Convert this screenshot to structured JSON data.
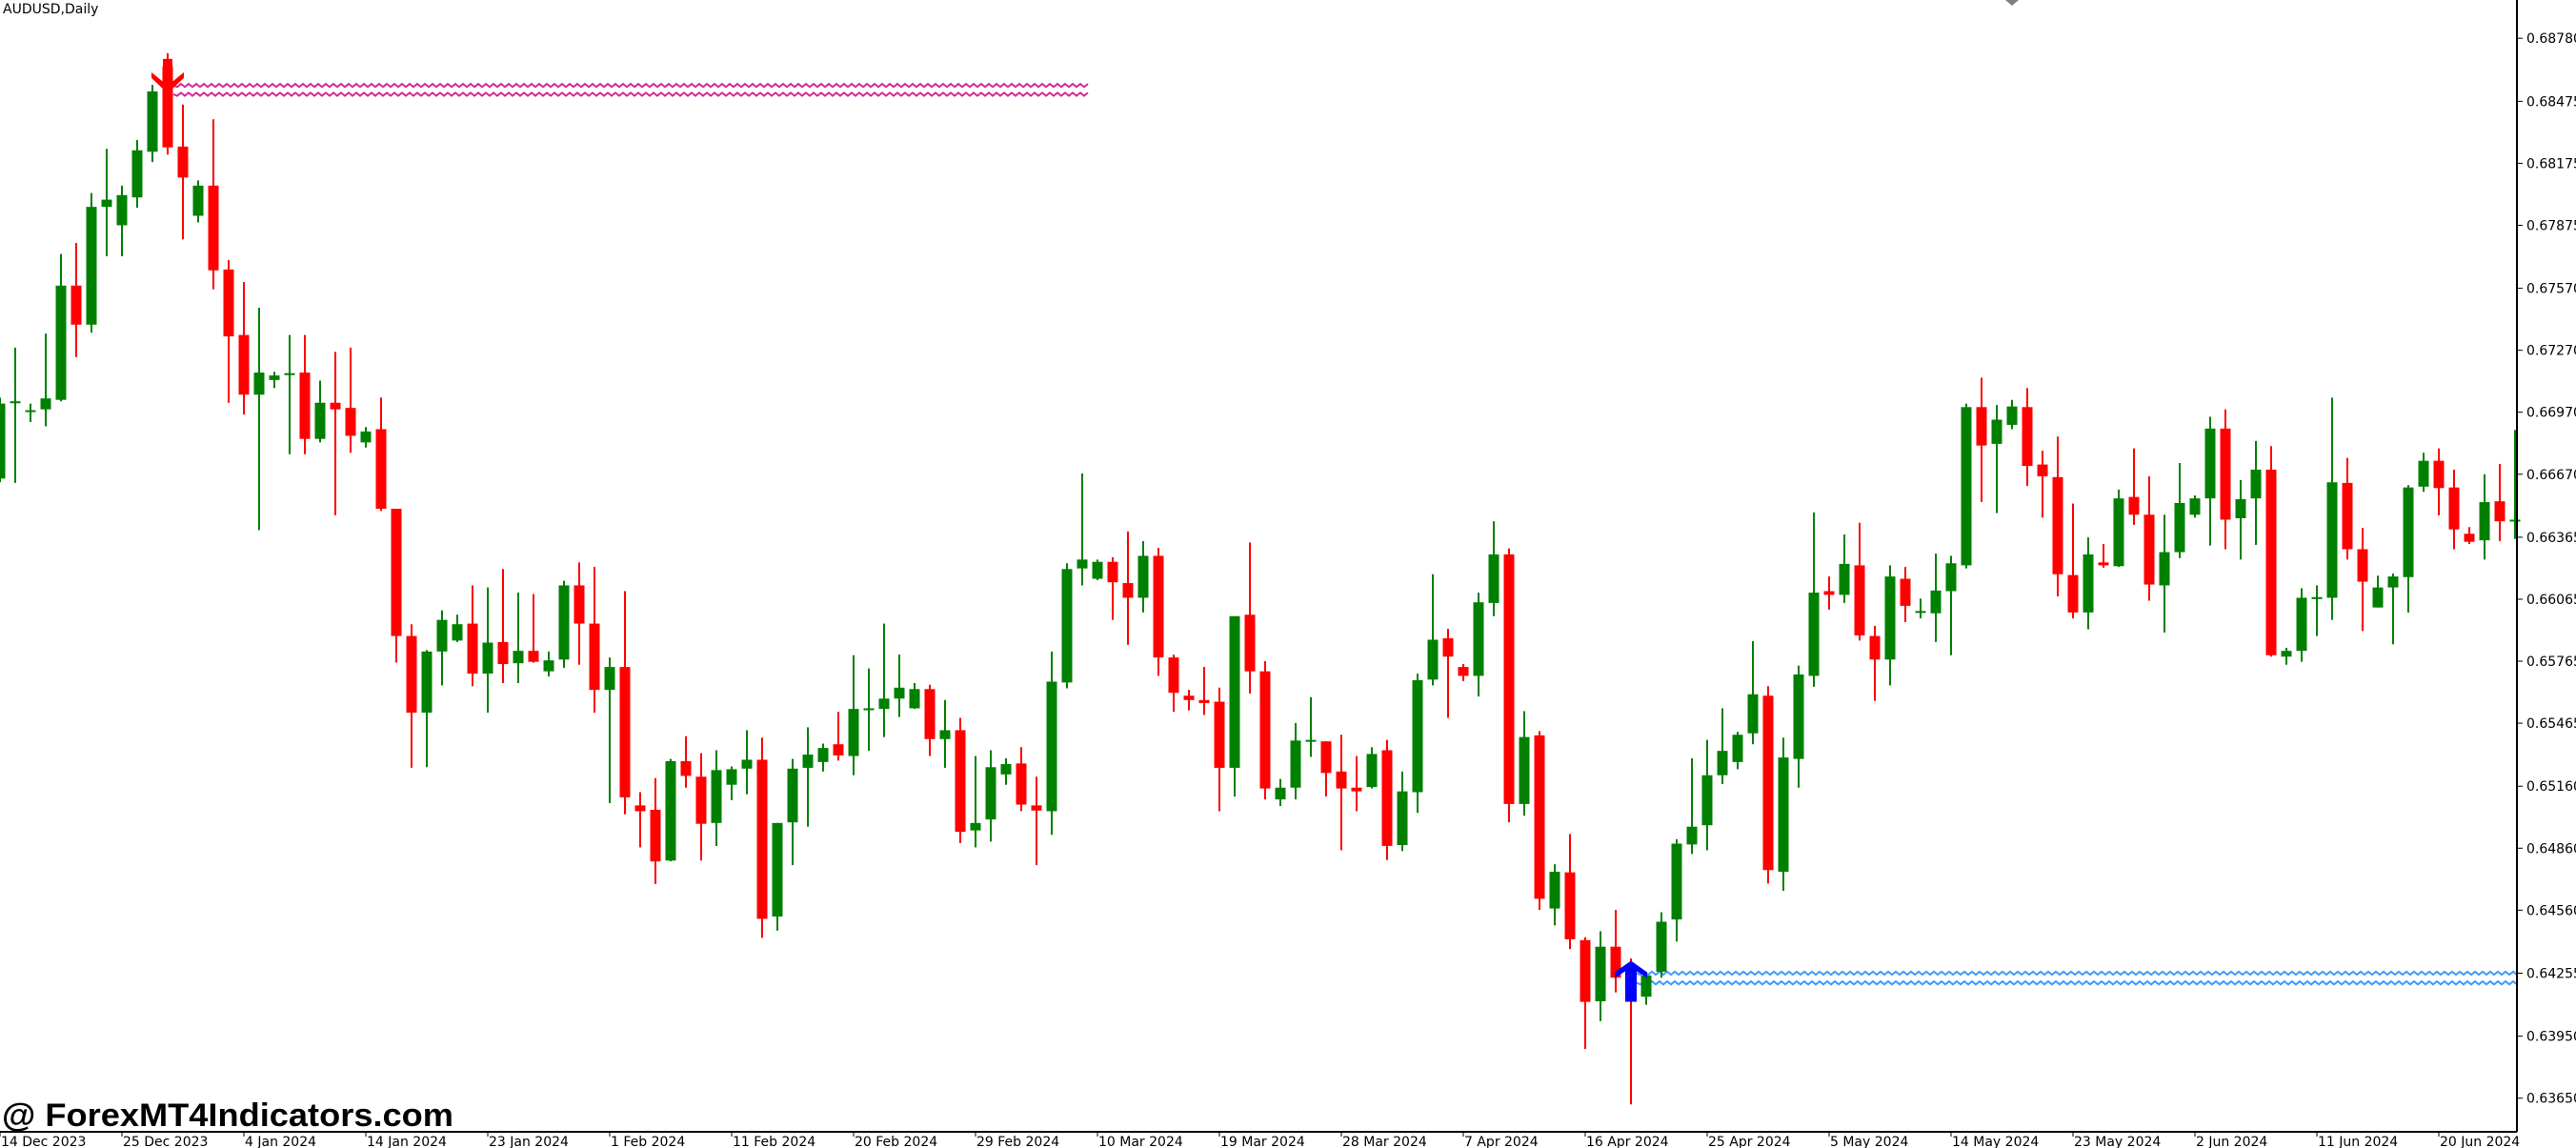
{
  "window": {
    "title": "AUDUSD,Daily"
  },
  "watermark": "@ ForexMT4Indicators.com",
  "colors": {
    "bull": "#008000",
    "bear": "#ff0000",
    "resistance": "#d12c9b",
    "support": "#3d9bff",
    "sell_arrow": "#ff0000",
    "buy_arrow": "#0000ff",
    "marker": "#808080",
    "axis": "#000000",
    "background": "#ffffff"
  },
  "chart_data": {
    "type": "candlestick",
    "title": "AUDUSD,Daily",
    "columns": [
      "open",
      "high",
      "low",
      "close"
    ],
    "x_tick_labels": [
      "14 Dec 2023",
      "25 Dec 2023",
      "4 Jan 2024",
      "14 Jan 2024",
      "23 Jan 2024",
      "1 Feb 2024",
      "11 Feb 2024",
      "20 Feb 2024",
      "29 Feb 2024",
      "10 Mar 2024",
      "19 Mar 2024",
      "28 Mar 2024",
      "7 Apr 2024",
      "16 Apr 2024",
      "25 Apr 2024",
      "5 May 2024",
      "14 May 2024",
      "23 May 2024",
      "2 Jun 2024",
      "11 Jun 2024",
      "20 Jun 2024"
    ],
    "x_tick_every_bars": 8,
    "y_tick_labels": [
      "0.68780",
      "0.68475",
      "0.68175",
      "0.67875",
      "0.67570",
      "0.67270",
      "0.66970",
      "0.66670",
      "0.66365",
      "0.66065",
      "0.65765",
      "0.65465",
      "0.65160",
      "0.64860",
      "0.64560",
      "0.64255",
      "0.63950",
      "0.63650"
    ],
    "ylim": [
      0.6358,
      0.6896
    ],
    "grid": false,
    "candles": [
      [
        0.66649,
        0.67041,
        0.66631,
        0.67012
      ],
      [
        0.67016,
        0.67283,
        0.66628,
        0.67023
      ],
      [
        0.66973,
        0.67012,
        0.66923,
        0.6698
      ],
      [
        0.66984,
        0.67351,
        0.66902,
        0.67037
      ],
      [
        0.6703,
        0.67736,
        0.67023,
        0.67583
      ],
      [
        0.67583,
        0.67789,
        0.67237,
        0.67394
      ],
      [
        0.67394,
        0.68031,
        0.67355,
        0.67964
      ],
      [
        0.67964,
        0.68245,
        0.67725,
        0.67999
      ],
      [
        0.67875,
        0.68067,
        0.67725,
        0.68021
      ],
      [
        0.6801,
        0.68288,
        0.6796,
        0.68238
      ],
      [
        0.68231,
        0.68555,
        0.68181,
        0.68523
      ],
      [
        0.68644,
        0.68708,
        0.68217,
        0.68252
      ],
      [
        0.68256,
        0.68459,
        0.67807,
        0.68106
      ],
      [
        0.67921,
        0.68092,
        0.67889,
        0.68067
      ],
      [
        0.68067,
        0.68388,
        0.67565,
        0.67657
      ],
      [
        0.67661,
        0.67707,
        0.67016,
        0.67337
      ],
      [
        0.67344,
        0.676,
        0.66959,
        0.67055
      ],
      [
        0.67055,
        0.67476,
        0.664,
        0.67162
      ],
      [
        0.67126,
        0.67166,
        0.67087,
        0.67148
      ],
      [
        0.67155,
        0.67344,
        0.66767,
        0.67159
      ],
      [
        0.67162,
        0.67344,
        0.66767,
        0.66841
      ],
      [
        0.66841,
        0.67123,
        0.66824,
        0.67016
      ],
      [
        0.67016,
        0.67262,
        0.66471,
        0.66984
      ],
      [
        0.66991,
        0.67283,
        0.66774,
        0.66856
      ],
      [
        0.66824,
        0.66898,
        0.66799,
        0.66877
      ],
      [
        0.66888,
        0.67041,
        0.66492,
        0.66503
      ],
      [
        0.66503,
        0.66503,
        0.65758,
        0.65887
      ],
      [
        0.65887,
        0.65944,
        0.65249,
        0.65516
      ],
      [
        0.65516,
        0.65819,
        0.65252,
        0.65812
      ],
      [
        0.65812,
        0.66011,
        0.65648,
        0.65965
      ],
      [
        0.65865,
        0.6599,
        0.65858,
        0.65944
      ],
      [
        0.65947,
        0.66132,
        0.65644,
        0.65705
      ],
      [
        0.65705,
        0.66122,
        0.65516,
        0.65855
      ],
      [
        0.65858,
        0.66211,
        0.65659,
        0.65751
      ],
      [
        0.65755,
        0.66097,
        0.65659,
        0.65815
      ],
      [
        0.65815,
        0.6609,
        0.65758,
        0.65762
      ],
      [
        0.65716,
        0.65812,
        0.65691,
        0.65769
      ],
      [
        0.65773,
        0.66154,
        0.65733,
        0.66132
      ],
      [
        0.66132,
        0.66243,
        0.65748,
        0.65947
      ],
      [
        0.65947,
        0.66221,
        0.65516,
        0.65626
      ],
      [
        0.65626,
        0.65783,
        0.65078,
        0.65737
      ],
      [
        0.65737,
        0.66104,
        0.65024,
        0.65106
      ],
      [
        0.65067,
        0.65131,
        0.64864,
        0.65039
      ],
      [
        0.65046,
        0.65199,
        0.64686,
        0.64796
      ],
      [
        0.648,
        0.65292,
        0.64796,
        0.65281
      ],
      [
        0.65281,
        0.65402,
        0.65153,
        0.6521
      ],
      [
        0.65206,
        0.6532,
        0.648,
        0.64978
      ],
      [
        0.64982,
        0.65334,
        0.64871,
        0.65238
      ],
      [
        0.65167,
        0.65256,
        0.65092,
        0.65242
      ],
      [
        0.65245,
        0.65431,
        0.65121,
        0.65288
      ],
      [
        0.65288,
        0.65395,
        0.64426,
        0.64518
      ],
      [
        0.64529,
        0.64982,
        0.64461,
        0.64982
      ],
      [
        0.64985,
        0.65292,
        0.64778,
        0.65245
      ],
      [
        0.65249,
        0.65445,
        0.64964,
        0.65313
      ],
      [
        0.65277,
        0.65366,
        0.65231,
        0.65345
      ],
      [
        0.65363,
        0.6552,
        0.65284,
        0.65309
      ],
      [
        0.65306,
        0.65794,
        0.65213,
        0.65534
      ],
      [
        0.6553,
        0.6573,
        0.65331,
        0.65537
      ],
      [
        0.65534,
        0.65947,
        0.65398,
        0.65584
      ],
      [
        0.65584,
        0.65797,
        0.65495,
        0.65637
      ],
      [
        0.65537,
        0.65659,
        0.65534,
        0.6563
      ],
      [
        0.6563,
        0.65651,
        0.65306,
        0.65388
      ],
      [
        0.65388,
        0.65577,
        0.65249,
        0.65431
      ],
      [
        0.65431,
        0.65491,
        0.64885,
        0.64939
      ],
      [
        0.64946,
        0.65306,
        0.64864,
        0.64982
      ],
      [
        0.64999,
        0.65334,
        0.64892,
        0.65252
      ],
      [
        0.65217,
        0.65295,
        0.65167,
        0.65267
      ],
      [
        0.6527,
        0.65349,
        0.65039,
        0.65071
      ],
      [
        0.65067,
        0.65206,
        0.64778,
        0.65042
      ],
      [
        0.65039,
        0.65812,
        0.64925,
        0.65666
      ],
      [
        0.65662,
        0.66239,
        0.65634,
        0.66211
      ],
      [
        0.66214,
        0.66674,
        0.66132,
        0.66257
      ],
      [
        0.66164,
        0.66257,
        0.66157,
        0.66246
      ],
      [
        0.66246,
        0.66268,
        0.65965,
        0.66147
      ],
      [
        0.66143,
        0.66393,
        0.65844,
        0.66072
      ],
      [
        0.66072,
        0.66346,
        0.66001,
        0.66275
      ],
      [
        0.66275,
        0.66314,
        0.65694,
        0.65783
      ],
      [
        0.65783,
        0.65797,
        0.6552,
        0.65612
      ],
      [
        0.65598,
        0.65626,
        0.65527,
        0.65577
      ],
      [
        0.65577,
        0.65737,
        0.65505,
        0.65562
      ],
      [
        0.65569,
        0.65637,
        0.65039,
        0.65249
      ],
      [
        0.65249,
        0.65983,
        0.6511,
        0.65983
      ],
      [
        0.6599,
        0.66339,
        0.65609,
        0.65716
      ],
      [
        0.65716,
        0.65765,
        0.65096,
        0.65149
      ],
      [
        0.65096,
        0.65195,
        0.65064,
        0.65153
      ],
      [
        0.65153,
        0.65466,
        0.65096,
        0.65381
      ],
      [
        0.65381,
        0.65591,
        0.65302,
        0.65384
      ],
      [
        0.65377,
        0.65377,
        0.6511,
        0.65224
      ],
      [
        0.65231,
        0.65409,
        0.6485,
        0.65149
      ],
      [
        0.65153,
        0.65306,
        0.65039,
        0.65135
      ],
      [
        0.65156,
        0.65349,
        0.65149,
        0.65316
      ],
      [
        0.65334,
        0.65384,
        0.64803,
        0.64871
      ],
      [
        0.64875,
        0.65231,
        0.64846,
        0.65135
      ],
      [
        0.65131,
        0.65705,
        0.65031,
        0.65673
      ],
      [
        0.65676,
        0.66186,
        0.65648,
        0.65869
      ],
      [
        0.65876,
        0.65922,
        0.65491,
        0.65787
      ],
      [
        0.65737,
        0.65751,
        0.65669,
        0.65694
      ],
      [
        0.65694,
        0.66097,
        0.65594,
        0.6605
      ],
      [
        0.66047,
        0.66442,
        0.65983,
        0.66282
      ],
      [
        0.66282,
        0.66311,
        0.64985,
        0.65074
      ],
      [
        0.65074,
        0.65523,
        0.65017,
        0.65398
      ],
      [
        0.65406,
        0.65427,
        0.64561,
        0.64615
      ],
      [
        0.64568,
        0.64782,
        0.64486,
        0.64746
      ],
      [
        0.64743,
        0.64928,
        0.64372,
        0.64419
      ],
      [
        0.64415,
        0.64429,
        0.63888,
        0.64116
      ],
      [
        0.64119,
        0.64458,
        0.64023,
        0.64383
      ],
      [
        0.64383,
        0.64561,
        0.64162,
        0.64233
      ],
      [
        0.64255,
        0.64326,
        0.6362,
        0.64183
      ],
      [
        0.64141,
        0.64262,
        0.64102,
        0.64244
      ],
      [
        0.64262,
        0.6455,
        0.64233,
        0.64504
      ],
      [
        0.64515,
        0.64903,
        0.64408,
        0.64882
      ],
      [
        0.64878,
        0.65295,
        0.64832,
        0.64964
      ],
      [
        0.64971,
        0.65384,
        0.6485,
        0.65213
      ],
      [
        0.65213,
        0.65537,
        0.6517,
        0.65331
      ],
      [
        0.65277,
        0.65423,
        0.65242,
        0.65409
      ],
      [
        0.65416,
        0.65862,
        0.65363,
        0.65605
      ],
      [
        0.65598,
        0.65644,
        0.64689,
        0.64754
      ],
      [
        0.64746,
        0.65395,
        0.64654,
        0.65299
      ],
      [
        0.65292,
        0.65744,
        0.65153,
        0.65701
      ],
      [
        0.65694,
        0.66485,
        0.65641,
        0.66097
      ],
      [
        0.66104,
        0.66175,
        0.66015,
        0.66086
      ],
      [
        0.66086,
        0.66378,
        0.66047,
        0.66236
      ],
      [
        0.66229,
        0.66435,
        0.65865,
        0.6589
      ],
      [
        0.65887,
        0.65936,
        0.65573,
        0.65773
      ],
      [
        0.65773,
        0.66229,
        0.65648,
        0.66175
      ],
      [
        0.66164,
        0.66221,
        0.65954,
        0.66033
      ],
      [
        0.66001,
        0.66068,
        0.65972,
        0.66008
      ],
      [
        0.65997,
        0.66286,
        0.65858,
        0.66107
      ],
      [
        0.66104,
        0.66275,
        0.65794,
        0.66239
      ],
      [
        0.66229,
        0.67012,
        0.66214,
        0.66995
      ],
      [
        0.66995,
        0.67137,
        0.66535,
        0.66809
      ],
      [
        0.66817,
        0.67005,
        0.66482,
        0.66934
      ],
      [
        0.66909,
        0.6703,
        0.66888,
        0.66998
      ],
      [
        0.66995,
        0.67087,
        0.66613,
        0.6671
      ],
      [
        0.66717,
        0.66784,
        0.6646,
        0.6666
      ],
      [
        0.66656,
        0.66852,
        0.66079,
        0.66186
      ],
      [
        0.66182,
        0.66528,
        0.65972,
        0.66001
      ],
      [
        0.66001,
        0.66364,
        0.65919,
        0.66282
      ],
      [
        0.66243,
        0.66332,
        0.66218,
        0.66229
      ],
      [
        0.66225,
        0.66596,
        0.66221,
        0.66553
      ],
      [
        0.6656,
        0.66795,
        0.66425,
        0.66474
      ],
      [
        0.66474,
        0.6666,
        0.66058,
        0.66136
      ],
      [
        0.66132,
        0.66474,
        0.65904,
        0.66293
      ],
      [
        0.66293,
        0.66724,
        0.66264,
        0.66531
      ],
      [
        0.66474,
        0.66567,
        0.6646,
        0.66553
      ],
      [
        0.66553,
        0.66948,
        0.66325,
        0.66891
      ],
      [
        0.66891,
        0.66984,
        0.66307,
        0.6645
      ],
      [
        0.66457,
        0.66642,
        0.66257,
        0.66549
      ],
      [
        0.66553,
        0.66831,
        0.66328,
        0.66692
      ],
      [
        0.66692,
        0.66806,
        0.65787,
        0.65794
      ],
      [
        0.65787,
        0.6583,
        0.65748,
        0.65815
      ],
      [
        0.65815,
        0.66118,
        0.65762,
        0.66072
      ],
      [
        0.66068,
        0.66132,
        0.65887,
        0.66075
      ],
      [
        0.66072,
        0.67041,
        0.65965,
        0.66631
      ],
      [
        0.66628,
        0.66749,
        0.66257,
        0.66307
      ],
      [
        0.66307,
        0.6641,
        0.65911,
        0.6615
      ],
      [
        0.66025,
        0.66179,
        0.66025,
        0.66122
      ],
      [
        0.66122,
        0.66189,
        0.65847,
        0.66175
      ],
      [
        0.66172,
        0.66617,
        0.66001,
        0.66606
      ],
      [
        0.6661,
        0.66774,
        0.66585,
        0.66735
      ],
      [
        0.66735,
        0.66795,
        0.66471,
        0.66603
      ],
      [
        0.66606,
        0.66692,
        0.66307,
        0.66403
      ],
      [
        0.66382,
        0.66414,
        0.66332,
        0.66343
      ],
      [
        0.6635,
        0.6667,
        0.66257,
        0.66535
      ],
      [
        0.66539,
        0.6672,
        0.66346,
        0.66442
      ],
      [
        0.66442,
        0.66884,
        0.66357,
        0.6645
      ]
    ],
    "levels": [
      {
        "kind": "resistance",
        "prices": [
          0.68552,
          0.68509
        ],
        "start_bar": 11,
        "end_bar": 71
      },
      {
        "kind": "support",
        "prices": [
          0.64255,
          0.64208
        ],
        "start_bar": 107,
        "end_bar": 165
      }
    ],
    "signals": [
      {
        "type": "sell",
        "bar": 11
      },
      {
        "type": "buy",
        "bar": 107
      }
    ],
    "top_marker_bar": 132
  }
}
